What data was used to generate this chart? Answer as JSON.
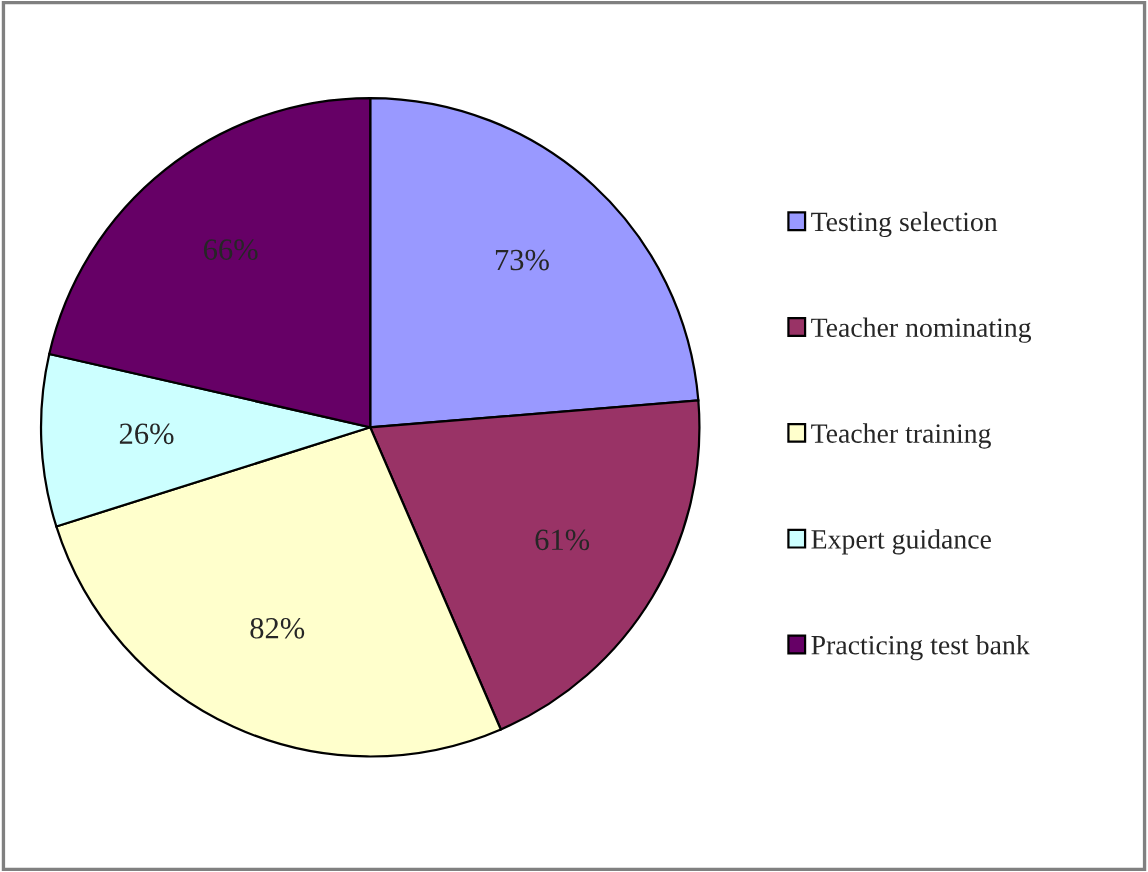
{
  "chart_data": {
    "type": "pie",
    "categories": [
      "Testing selection",
      "Teacher nominating",
      "Teacher training",
      "Expert guidance",
      "Practicing test bank"
    ],
    "values": [
      73,
      61,
      82,
      26,
      66
    ],
    "colors": [
      "#9999ff",
      "#993366",
      "#ffffcc",
      "#ccffff",
      "#660066"
    ],
    "value_labels": [
      "73%",
      "61%",
      "82%",
      "26%",
      "66%"
    ],
    "legend": "right"
  }
}
